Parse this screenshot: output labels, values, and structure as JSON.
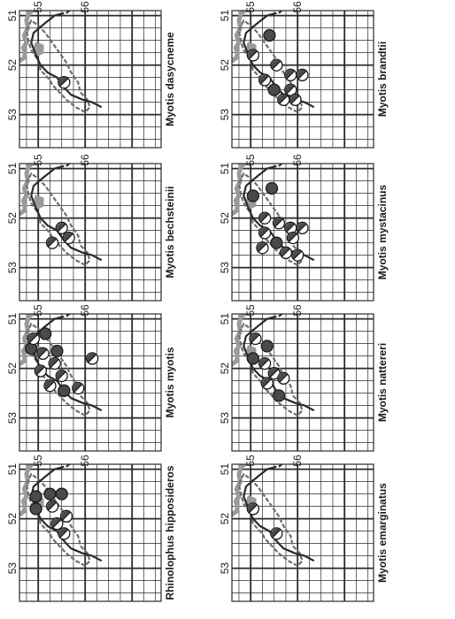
{
  "figure": {
    "tick_labels_x": [
      "51",
      "52",
      "53"
    ],
    "tick_labels_y": [
      "55",
      "56"
    ],
    "colors": {
      "grid": "#2a2a2a",
      "border_coast": "#9a9a9a",
      "river": "#2a2a2a",
      "region": "#6e6e6e",
      "marker_fill": "#4a4a4a"
    },
    "panels": [
      {
        "species": "Myotis dasycneme",
        "records": [
          {
            "lon": 52.35,
            "lat": 55.55,
            "type": "half"
          }
        ]
      },
      {
        "species": "Myotis brandtii",
        "records": [
          {
            "lon": 51.4,
            "lat": 55.4,
            "type": "filled"
          },
          {
            "lon": 51.8,
            "lat": 55.05,
            "type": "half"
          },
          {
            "lon": 52.2,
            "lat": 55.85,
            "type": "half"
          },
          {
            "lon": 52.2,
            "lat": 56.1,
            "type": "half"
          },
          {
            "lon": 52.5,
            "lat": 55.85,
            "type": "half"
          },
          {
            "lon": 52.5,
            "lat": 55.5,
            "type": "filled"
          },
          {
            "lon": 52.3,
            "lat": 55.3,
            "type": "half"
          },
          {
            "lon": 52.7,
            "lat": 55.7,
            "type": "half"
          },
          {
            "lon": 52.7,
            "lat": 55.95,
            "type": "half"
          },
          {
            "lon": 52.0,
            "lat": 55.55,
            "type": "half"
          }
        ]
      },
      {
        "species": "Myotis bechsteinii",
        "records": [
          {
            "lon": 52.2,
            "lat": 55.5,
            "type": "half"
          },
          {
            "lon": 52.5,
            "lat": 55.3,
            "type": "half"
          },
          {
            "lon": 52.4,
            "lat": 55.65,
            "type": "half"
          }
        ]
      },
      {
        "species": "Myotis mystacinus",
        "records": [
          {
            "lon": 51.55,
            "lat": 55.05,
            "type": "filled"
          },
          {
            "lon": 51.4,
            "lat": 55.45,
            "type": "filled"
          },
          {
            "lon": 52.0,
            "lat": 55.3,
            "type": "half"
          },
          {
            "lon": 52.1,
            "lat": 55.6,
            "type": "half"
          },
          {
            "lon": 52.2,
            "lat": 55.85,
            "type": "half"
          },
          {
            "lon": 52.2,
            "lat": 56.1,
            "type": "half"
          },
          {
            "lon": 52.4,
            "lat": 55.9,
            "type": "half"
          },
          {
            "lon": 52.5,
            "lat": 55.55,
            "type": "filled"
          },
          {
            "lon": 52.6,
            "lat": 55.25,
            "type": "half"
          },
          {
            "lon": 52.7,
            "lat": 55.75,
            "type": "half"
          },
          {
            "lon": 52.75,
            "lat": 56.0,
            "type": "half"
          },
          {
            "lon": 52.3,
            "lat": 55.3,
            "type": "half"
          }
        ]
      },
      {
        "species": "Myotis myotis",
        "records": [
          {
            "lon": 51.3,
            "lat": 55.15,
            "type": "filled"
          },
          {
            "lon": 51.6,
            "lat": 54.85,
            "type": "filled"
          },
          {
            "lon": 51.7,
            "lat": 55.1,
            "type": "half"
          },
          {
            "lon": 51.9,
            "lat": 55.35,
            "type": "half"
          },
          {
            "lon": 52.05,
            "lat": 55.05,
            "type": "half"
          },
          {
            "lon": 52.15,
            "lat": 55.5,
            "type": "half"
          },
          {
            "lon": 52.35,
            "lat": 55.25,
            "type": "half"
          },
          {
            "lon": 52.45,
            "lat": 55.55,
            "type": "filled"
          },
          {
            "lon": 52.4,
            "lat": 55.85,
            "type": "half"
          },
          {
            "lon": 51.8,
            "lat": 56.15,
            "type": "half"
          },
          {
            "lon": 51.65,
            "lat": 55.4,
            "type": "filled"
          },
          {
            "lon": 51.4,
            "lat": 54.9,
            "type": "half"
          }
        ]
      },
      {
        "species": "Myotis nattereri",
        "records": [
          {
            "lon": 51.4,
            "lat": 55.1,
            "type": "half"
          },
          {
            "lon": 51.55,
            "lat": 55.35,
            "type": "filled"
          },
          {
            "lon": 51.8,
            "lat": 55.05,
            "type": "filled"
          },
          {
            "lon": 51.9,
            "lat": 55.3,
            "type": "half"
          },
          {
            "lon": 52.1,
            "lat": 55.5,
            "type": "half"
          },
          {
            "lon": 52.3,
            "lat": 55.35,
            "type": "half"
          },
          {
            "lon": 52.55,
            "lat": 55.6,
            "type": "filled"
          },
          {
            "lon": 52.2,
            "lat": 55.7,
            "type": "half"
          }
        ]
      },
      {
        "species": "Rhinolophus hipposideros",
        "records": [
          {
            "lon": 51.55,
            "lat": 54.95,
            "type": "filled"
          },
          {
            "lon": 51.8,
            "lat": 54.95,
            "type": "filled"
          },
          {
            "lon": 51.5,
            "lat": 55.25,
            "type": "filled"
          },
          {
            "lon": 51.75,
            "lat": 55.3,
            "type": "half"
          },
          {
            "lon": 52.1,
            "lat": 55.4,
            "type": "half"
          },
          {
            "lon": 52.3,
            "lat": 55.55,
            "type": "half"
          },
          {
            "lon": 51.5,
            "lat": 55.5,
            "type": "filled"
          },
          {
            "lon": 51.95,
            "lat": 55.6,
            "type": "half"
          }
        ]
      },
      {
        "species": "Myotis emarginatus",
        "records": [
          {
            "lon": 51.8,
            "lat": 55.05,
            "type": "half"
          },
          {
            "lon": 52.3,
            "lat": 55.55,
            "type": "half"
          }
        ]
      }
    ]
  }
}
